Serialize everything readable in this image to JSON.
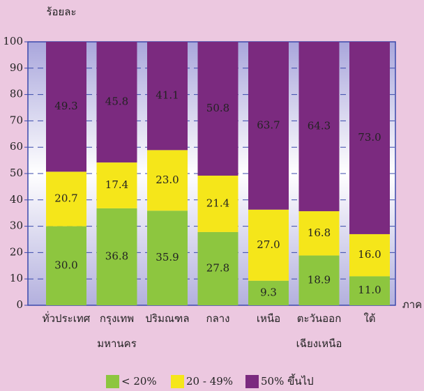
{
  "chart_data": {
    "type": "stacked_bar",
    "ylabel": "ร้อยละ",
    "xlabel": "ภาค",
    "categories": [
      "ทั่วประเทศ",
      "กรุงเทพ\nมหานคร",
      "ปริมณฑล",
      "กลาง",
      "เหนือ",
      "ตะวันออก\nเฉียงเหนือ",
      "ใต้"
    ],
    "series": [
      {
        "name": "< 20%",
        "color": "#8dc63f",
        "values": [
          30.0,
          36.8,
          35.9,
          27.8,
          9.3,
          18.9,
          11.0
        ],
        "value_labels": [
          "30.0",
          "36.8",
          "35.9",
          "27.8",
          "9.3",
          "18.9",
          "11.0"
        ]
      },
      {
        "name": "20 - 49%",
        "color": "#f5e61a",
        "values": [
          20.7,
          17.4,
          23.0,
          21.4,
          27.0,
          16.8,
          16.0
        ],
        "value_labels": [
          "20.7",
          "17.4",
          "23.0",
          "21.4",
          "27.0",
          "16.8",
          "16.0"
        ]
      },
      {
        "name": "50% ขึ้นไป",
        "color": "#7b2a7f",
        "values": [
          49.3,
          45.8,
          41.1,
          50.8,
          63.7,
          64.3,
          73.0
        ],
        "value_labels": [
          "49.3",
          "45.8",
          "41.1",
          "50.8",
          "63.7",
          "64.3",
          "73.0"
        ]
      }
    ],
    "ylim": [
      0,
      100
    ],
    "yticks": [
      0,
      10,
      20,
      30,
      40,
      50,
      60,
      70,
      80,
      90,
      100
    ],
    "grid": true,
    "legend": "bottom"
  }
}
